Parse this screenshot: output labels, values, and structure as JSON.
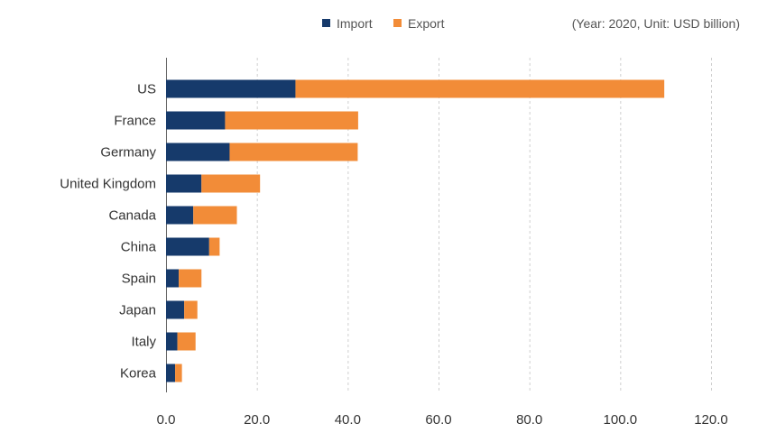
{
  "chart_data": {
    "type": "bar",
    "orientation": "horizontal",
    "stacked": true,
    "note": "(Year: 2020, Unit: USD billion)",
    "categories": [
      "US",
      "France",
      "Germany",
      "United Kingdom",
      "Canada",
      "China",
      "Spain",
      "Japan",
      "Italy",
      "Korea"
    ],
    "series": [
      {
        "name": "Import",
        "color": "#163a6b",
        "values": [
          28.5,
          13.0,
          14.0,
          7.8,
          6.0,
          9.5,
          2.8,
          4.0,
          2.5,
          2.0
        ]
      },
      {
        "name": "Export",
        "color": "#f28c38",
        "values": [
          81.2,
          29.3,
          28.2,
          12.9,
          9.6,
          2.3,
          5.0,
          2.9,
          4.0,
          1.5
        ]
      }
    ],
    "xlim": [
      0,
      120
    ],
    "xticks": [
      "0.0",
      "20.0",
      "40.0",
      "60.0",
      "80.0",
      "100.0",
      "120.0"
    ],
    "grid": true,
    "legend_position": "top"
  }
}
